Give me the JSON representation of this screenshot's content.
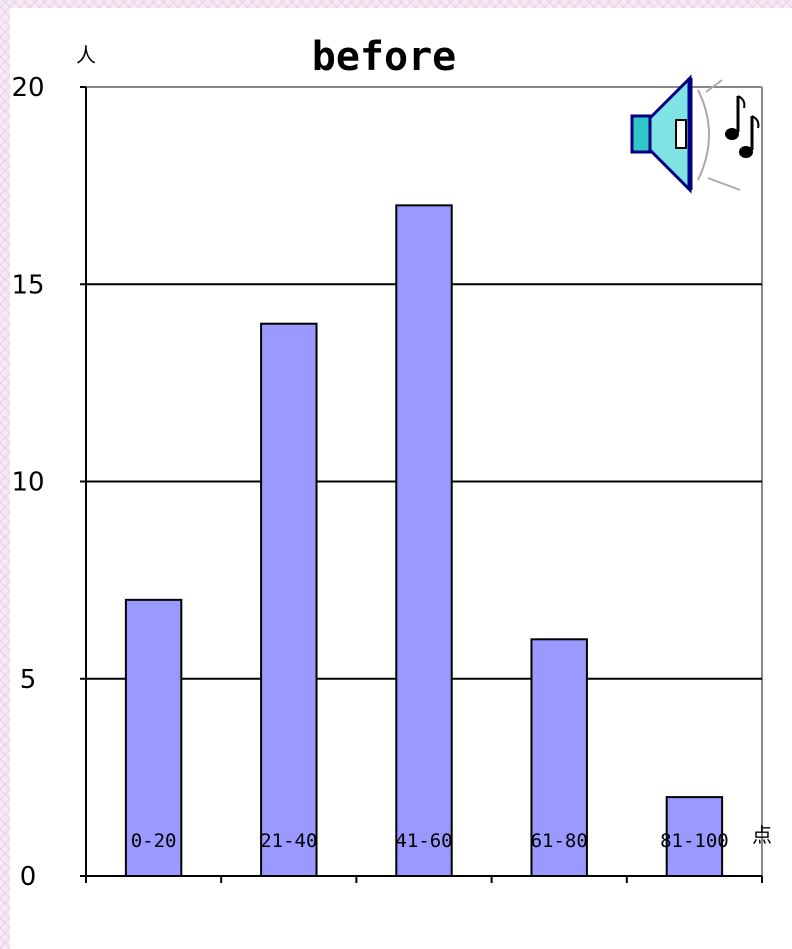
{
  "chart_data": {
    "type": "bar",
    "title": "before",
    "ylabel": "人",
    "xlabel": "点",
    "categories": [
      "0-20",
      "21-40",
      "41-60",
      "61-80",
      "81-100"
    ],
    "values": [
      7,
      14,
      17,
      6,
      2
    ],
    "ylim": [
      0,
      20
    ],
    "yticks": [
      "0",
      "5",
      "10",
      "15",
      "20"
    ],
    "grid": true,
    "bar_color": "#9999ff",
    "legend": "none"
  },
  "decoration": {
    "icon": "speaker-with-music-notes-icon"
  }
}
